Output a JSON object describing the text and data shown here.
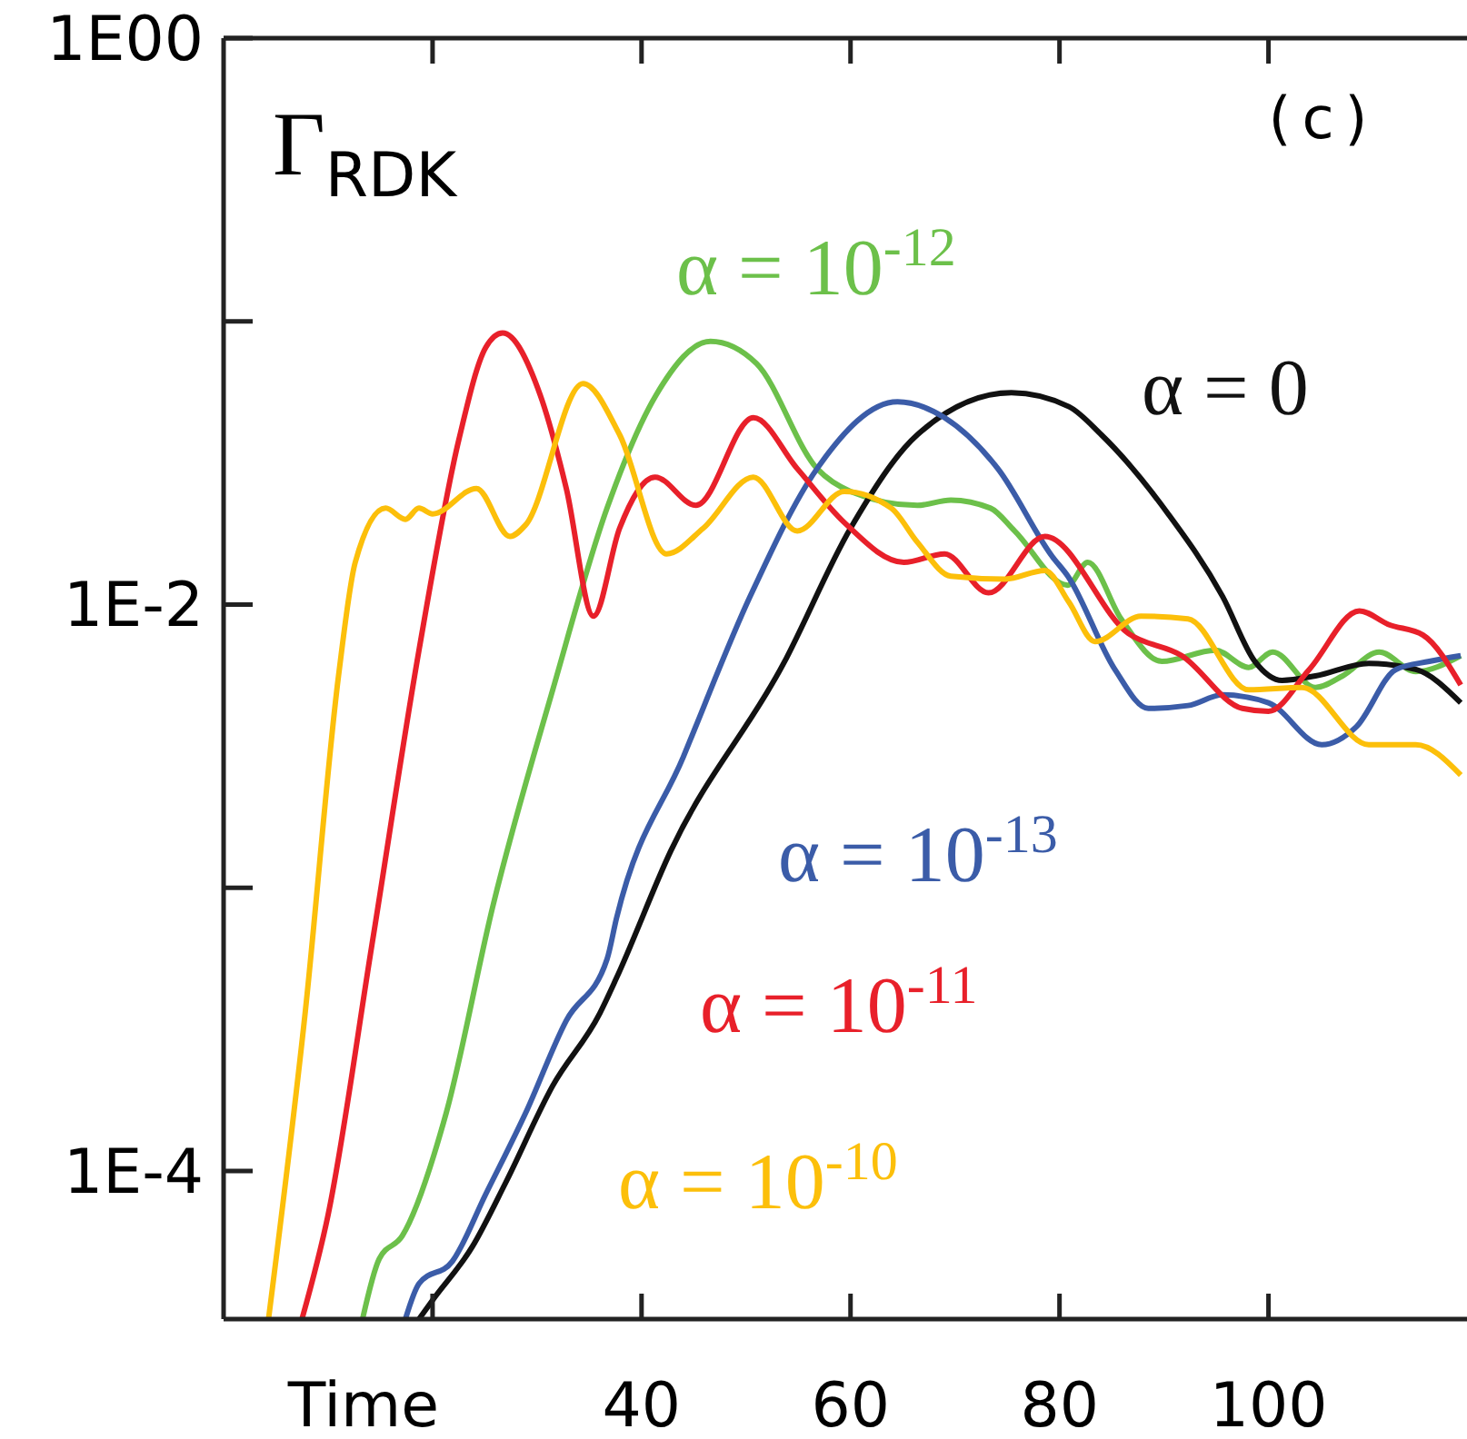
{
  "chart_data": {
    "type": "line",
    "log": "y",
    "xlabel": "Time",
    "ylabel": "Γ$_{RDK}$",
    "annotations": [
      "(c)"
    ],
    "xlim": [
      0,
      119
    ],
    "xticks": [
      {
        "value": 20,
        "label": null
      },
      40,
      60,
      80,
      100
    ],
    "ylim": [
      3e-05,
      1
    ],
    "yticks": [
      {
        "value": 1,
        "label": "1E00"
      },
      {
        "value": 0.1,
        "label": null
      },
      {
        "value": 0.01,
        "label": "1E-2"
      },
      {
        "value": 0.001,
        "label": null
      },
      {
        "value": 0.0001,
        "label": "1E-4"
      }
    ],
    "series": [
      {
        "name": "α = 10$^{-12}$",
        "color": "#6cc04a",
        "x": [
          13.3,
          14.9,
          17.1,
          21.3,
          25.8,
          31.5,
          36.7,
          41.4,
          46.6,
          51.0,
          56.8,
          60.0,
          66.4,
          69.6,
          73.4,
          75.7,
          80.8,
          82.7,
          85.9,
          89.8,
          94.9,
          98.1,
          100.4,
          104.5,
          107.1,
          110.6,
          114.1,
          118.4
        ],
        "values": [
          3e-05,
          4.9e-05,
          5.9e-05,
          0.00016,
          0.00087,
          0.005,
          0.0219,
          0.055,
          0.085,
          0.071,
          0.0302,
          0.0251,
          0.0224,
          0.0234,
          0.0219,
          0.0182,
          0.0117,
          0.0141,
          0.0089,
          0.0063,
          0.0069,
          0.006,
          0.0068,
          0.0051,
          0.0056,
          0.0068,
          0.0058,
          0.0066
        ]
      },
      {
        "name": "α = 0",
        "color": "#111111",
        "x": [
          18.7,
          20.0,
          23.8,
          27.0,
          31.5,
          36.0,
          37.6,
          42.8,
          53.6,
          60.0,
          66.4,
          75.4,
          80.9,
          84.0,
          90.4,
          95.6,
          98.7,
          101.3,
          104.5,
          109.6,
          114.1,
          118.4
        ],
        "values": [
          3e-05,
          3.5e-05,
          5.4e-05,
          9.1e-05,
          0.0002,
          0.00036,
          0.00048,
          0.00135,
          0.0062,
          0.0186,
          0.0398,
          0.056,
          0.05,
          0.0398,
          0.0209,
          0.0107,
          0.0063,
          0.0054,
          0.0056,
          0.0062,
          0.0059,
          0.0045
        ]
      },
      {
        "name": "α = 10$^{-13}$",
        "color": "#3b5ca8",
        "x": [
          17.4,
          18.7,
          21.9,
          25.1,
          28.9,
          32.8,
          36.7,
          37.6,
          44.0,
          50.4,
          56.8,
          64.5,
          69.0,
          74.1,
          79.3,
          80.8,
          85.3,
          88.5,
          92.3,
          95.6,
          100.0,
          105.1,
          108.4,
          112.2,
          115.4,
          118.4
        ],
        "values": [
          3e-05,
          4e-05,
          4.8e-05,
          8.3e-05,
          0.00016,
          0.00034,
          0.00056,
          0.00078,
          0.0029,
          0.0107,
          0.0302,
          0.052,
          0.0457,
          0.0302,
          0.0148,
          0.0126,
          0.0059,
          0.0043,
          0.0044,
          0.0048,
          0.0045,
          0.0032,
          0.0037,
          0.0059,
          0.0063,
          0.0066
        ]
      },
      {
        "name": "α = 10$^{-11}$",
        "color": "#e8202a",
        "x": [
          7.5,
          10.0,
          14.2,
          18.7,
          22.5,
          25.1,
          26.7,
          30.3,
          32.8,
          35.4,
          37.9,
          41.3,
          45.2,
          50.7,
          54.9,
          59.4,
          65.1,
          69.0,
          73.2,
          78.6,
          86.6,
          91.7,
          97.5,
          100.0,
          103.9,
          108.7,
          111.5,
          114.8,
          118.4
        ],
        "values": [
          3e-05,
          7e-05,
          0.00063,
          0.0069,
          0.038,
          0.081,
          0.091,
          0.055,
          0.0257,
          0.0091,
          0.0186,
          0.0282,
          0.0224,
          0.0457,
          0.0302,
          0.0195,
          0.0141,
          0.0151,
          0.011,
          0.0174,
          0.0079,
          0.0066,
          0.0043,
          0.0042,
          0.0059,
          0.0095,
          0.0085,
          0.0078,
          0.0052
        ]
      },
      {
        "name": "α = 10$^{-10}$",
        "color": "#fcbf0a",
        "x": [
          4.3,
          7.8,
          11.0,
          12.6,
          15.5,
          17.4,
          18.7,
          20.0,
          24.2,
          27.4,
          28.9,
          34.4,
          37.9,
          42.4,
          45.9,
          50.7,
          54.9,
          59.4,
          63.9,
          66.4,
          69.6,
          74.8,
          78.6,
          80.9,
          83.4,
          87.8,
          92.3,
          98.1,
          103.2,
          109.6,
          114.1,
          118.4
        ],
        "values": [
          3e-05,
          0.00036,
          0.0056,
          0.0141,
          0.0219,
          0.02,
          0.0219,
          0.0209,
          0.0257,
          0.0174,
          0.0191,
          0.0603,
          0.0398,
          0.0151,
          0.0186,
          0.0282,
          0.0182,
          0.0251,
          0.0219,
          0.0166,
          0.0126,
          0.0123,
          0.0132,
          0.0102,
          0.0074,
          0.0091,
          0.0089,
          0.005,
          0.0051,
          0.0032,
          0.0032,
          0.0025
        ]
      }
    ]
  }
}
